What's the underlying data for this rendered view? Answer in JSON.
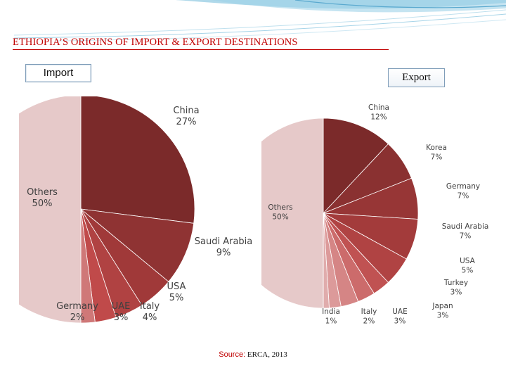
{
  "slide": {
    "title": "ETHIOPIA’S ORIGINS OF IMPORT & EXPORT DESTINATIONS",
    "import_label": "Import",
    "export_label": "Export",
    "source_label": "Source:",
    "source_text": " ERCA, 2013"
  },
  "colors": {
    "title": "#c00000",
    "others_slice": "#e6c9c9"
  },
  "chart_data": [
    {
      "type": "pie",
      "name": "Import",
      "slices": [
        {
          "label": "China",
          "value_text": "27%",
          "value": 27,
          "color": "#7b2a2a"
        },
        {
          "label": "Saudi Arabia",
          "value_text": "9%",
          "value": 9,
          "color": "#8f3333"
        },
        {
          "label": "USA",
          "value_text": "5%",
          "value": 5,
          "color": "#a03939"
        },
        {
          "label": "Italy",
          "value_text": "4%",
          "value": 4,
          "color": "#b04242"
        },
        {
          "label": "UAE",
          "value_text": "3%",
          "value": 3,
          "color": "#c04a4a"
        },
        {
          "label": "Germany",
          "value_text": "2%",
          "value": 2,
          "color": "#cf7878"
        },
        {
          "label": "Others",
          "value_text": "50%",
          "value": 50,
          "color": "#e6c9c9"
        }
      ]
    },
    {
      "type": "pie",
      "name": "Export",
      "slices": [
        {
          "label": "China",
          "value_text": "12%",
          "value": 12,
          "color": "#7b2a2a"
        },
        {
          "label": "Korea",
          "value_text": "7%",
          "value": 7,
          "color": "#8a3131"
        },
        {
          "label": "Germany",
          "value_text": "7%",
          "value": 7,
          "color": "#973636"
        },
        {
          "label": "Saudi Arabia",
          "value_text": "7%",
          "value": 7,
          "color": "#a33b3b"
        },
        {
          "label": "USA",
          "value_text": "5%",
          "value": 5,
          "color": "#b04343"
        },
        {
          "label": "Turkey",
          "value_text": "3%",
          "value": 3,
          "color": "#c05252"
        },
        {
          "label": "Japan",
          "value_text": "3%",
          "value": 3,
          "color": "#cc6b6b"
        },
        {
          "label": "UAE",
          "value_text": "3%",
          "value": 3,
          "color": "#d58585"
        },
        {
          "label": "Italy",
          "value_text": "2%",
          "value": 2,
          "color": "#dc9a9a"
        },
        {
          "label": "India",
          "value_text": "1%",
          "value": 1,
          "color": "#e0acac"
        },
        {
          "label": "Others",
          "value_text": "50%",
          "value": 50,
          "color": "#e6c9c9"
        }
      ]
    }
  ]
}
